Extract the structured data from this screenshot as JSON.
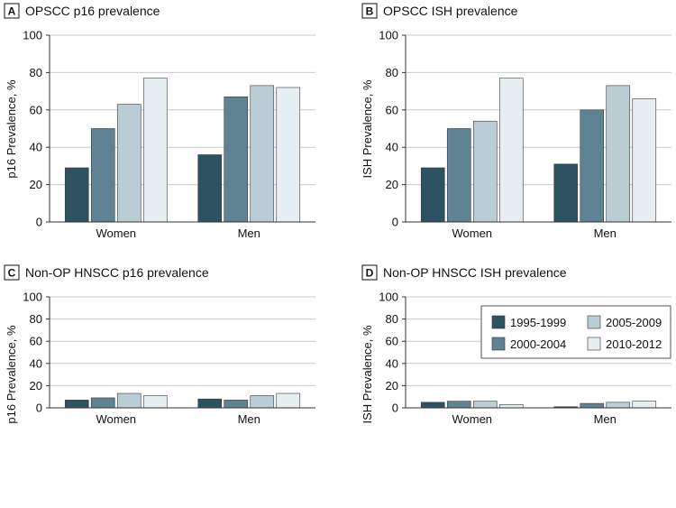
{
  "series_colors": {
    "1995-1999": "#2d5262",
    "2000-2004": "#5f8393",
    "2005-2009": "#bacdd5",
    "2010-2012": "#e6eef1"
  },
  "chart_data": [
    {
      "type": "bar",
      "panel_letter": "A",
      "title": "OPSCC p16 prevalence",
      "ylabel": "p16 Prevalence, %",
      "xlabel": "",
      "ylim": [
        0,
        100
      ],
      "yticks": [
        "0",
        "20",
        "40",
        "60",
        "80",
        "100"
      ],
      "grid": true,
      "categories": [
        "Women",
        "Men"
      ],
      "series": [
        {
          "name": "1995-1999",
          "values": [
            29,
            36
          ]
        },
        {
          "name": "2000-2004",
          "values": [
            50,
            67
          ]
        },
        {
          "name": "2005-2009",
          "values": [
            63,
            73
          ]
        },
        {
          "name": "2010-2012",
          "values": [
            77,
            72
          ]
        }
      ]
    },
    {
      "type": "bar",
      "panel_letter": "B",
      "title": "OPSCC ISH prevalence",
      "ylabel": "ISH Prevalence, %",
      "xlabel": "",
      "ylim": [
        0,
        100
      ],
      "yticks": [
        "0",
        "20",
        "40",
        "60",
        "80",
        "100"
      ],
      "grid": true,
      "categories": [
        "Women",
        "Men"
      ],
      "series": [
        {
          "name": "1995-1999",
          "values": [
            29,
            31
          ]
        },
        {
          "name": "2000-2004",
          "values": [
            50,
            60
          ]
        },
        {
          "name": "2005-2009",
          "values": [
            54,
            73
          ]
        },
        {
          "name": "2010-2012",
          "values": [
            77,
            66
          ]
        }
      ]
    },
    {
      "type": "bar",
      "panel_letter": "C",
      "title": "Non-OP HNSCC p16 prevalence",
      "ylabel": "p16 Prevalence, %",
      "xlabel": "",
      "ylim": [
        0,
        100
      ],
      "yticks": [
        "0",
        "20",
        "40",
        "60",
        "80",
        "100"
      ],
      "grid": true,
      "categories": [
        "Women",
        "Men"
      ],
      "series": [
        {
          "name": "1995-1999",
          "values": [
            7,
            8
          ]
        },
        {
          "name": "2000-2004",
          "values": [
            9,
            7
          ]
        },
        {
          "name": "2005-2009",
          "values": [
            13,
            11
          ]
        },
        {
          "name": "2010-2012",
          "values": [
            11,
            13
          ]
        }
      ]
    },
    {
      "type": "bar",
      "panel_letter": "D",
      "title": "Non-OP HNSCC ISH prevalence",
      "ylabel": "ISH Prevalence, %",
      "xlabel": "",
      "ylim": [
        0,
        100
      ],
      "yticks": [
        "0",
        "20",
        "40",
        "60",
        "80",
        "100"
      ],
      "grid": true,
      "legend_position": "top-right",
      "legend": [
        "1995-1999",
        "2005-2009",
        "2000-2004",
        "2010-2012"
      ],
      "categories": [
        "Women",
        "Men"
      ],
      "series": [
        {
          "name": "1995-1999",
          "values": [
            5,
            1
          ]
        },
        {
          "name": "2000-2004",
          "values": [
            6,
            4
          ]
        },
        {
          "name": "2005-2009",
          "values": [
            6,
            5
          ]
        },
        {
          "name": "2010-2012",
          "values": [
            3,
            6
          ]
        }
      ]
    }
  ]
}
